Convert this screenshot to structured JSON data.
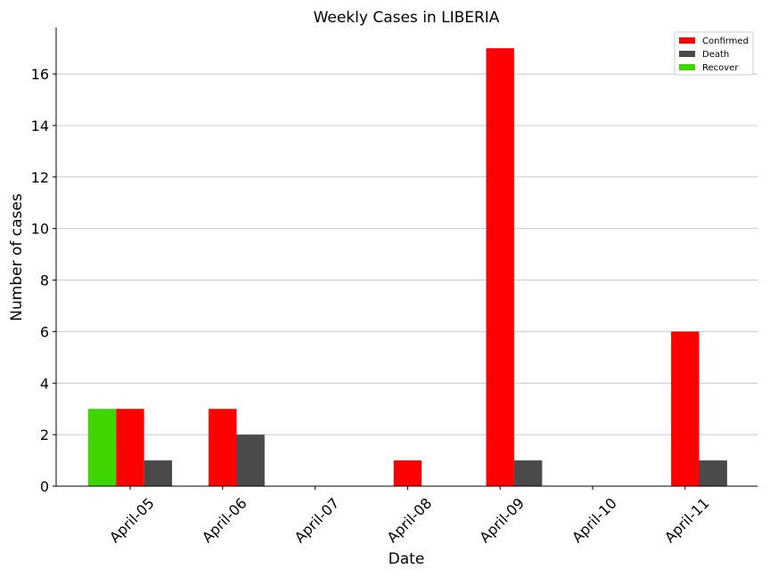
{
  "chart_data": {
    "type": "bar",
    "title": "Weekly Cases in LIBERIA",
    "xlabel": "Date",
    "ylabel": "Number of cases",
    "categories": [
      "April-05",
      "April-06",
      "April-07",
      "April-08",
      "April-09",
      "April-10",
      "April-11"
    ],
    "series": [
      {
        "name": "Recover",
        "color": "#3fd600",
        "values": [
          3,
          0,
          0,
          0,
          0,
          0,
          0
        ]
      },
      {
        "name": "Confirmed",
        "color": "#ff0000",
        "values": [
          3,
          3,
          0,
          1,
          17,
          0,
          6
        ]
      },
      {
        "name": "Death",
        "color": "#4a4a4a",
        "values": [
          1,
          2,
          0,
          0,
          1,
          0,
          1
        ]
      }
    ],
    "legend_order": [
      "Confirmed",
      "Death",
      "Recover"
    ],
    "ylim": [
      0,
      17.8
    ],
    "yticks": [
      0,
      2,
      4,
      6,
      8,
      10,
      12,
      14,
      16
    ],
    "grid": "horizontal",
    "legend_position": "top-right"
  }
}
